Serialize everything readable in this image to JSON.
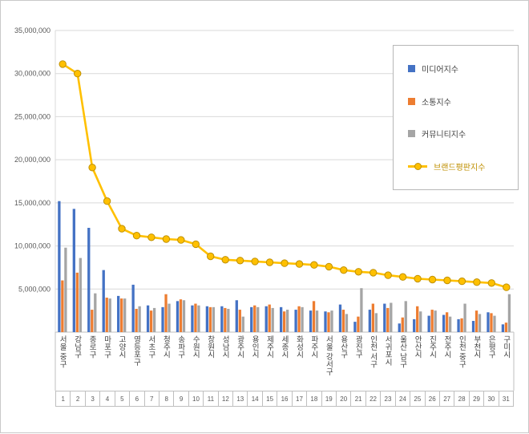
{
  "chart_data": {
    "type": "bar",
    "combo": "clustered bars + line with markers",
    "grid": true,
    "legend_position": "top-right",
    "ylim": [
      0,
      35000000
    ],
    "y_tick_step": 5000000,
    "y_tick_labels": [
      "35,000,000",
      "30,000,000",
      "25,000,000",
      "20,000,000",
      "15,000,000",
      "10,000,000",
      "5,000,000"
    ],
    "categories": [
      "서울 중구",
      "강남구",
      "종로구",
      "마포구",
      "고양시",
      "영등포구",
      "서초구",
      "청주시",
      "송파구",
      "수원시",
      "창원시",
      "성남시",
      "광주시",
      "용인시",
      "제주시",
      "세종시",
      "화성시",
      "파주시",
      "서울 강서구",
      "용산구",
      "광진구",
      "인천 서구",
      "서귀포시",
      "울산 남구",
      "안산시",
      "진주시",
      "전주시",
      "인천 중구",
      "부천시",
      "은평구",
      "구미시"
    ],
    "category_numbers": [
      1,
      2,
      3,
      4,
      5,
      6,
      7,
      8,
      9,
      10,
      11,
      12,
      13,
      14,
      15,
      16,
      17,
      18,
      19,
      20,
      21,
      22,
      23,
      24,
      25,
      26,
      27,
      28,
      29,
      30,
      31
    ],
    "series": [
      {
        "name": "미디어지수",
        "type": "bar",
        "color": "#4472C4",
        "label_color": "#404040",
        "values": [
          15200000,
          14300000,
          12100000,
          7200000,
          4200000,
          5500000,
          3100000,
          2900000,
          3600000,
          3100000,
          3000000,
          3000000,
          3700000,
          2900000,
          3000000,
          2900000,
          2600000,
          2500000,
          2400000,
          3200000,
          1200000,
          2600000,
          3300000,
          1000000,
          1500000,
          1900000,
          2000000,
          1500000,
          1300000,
          2300000,
          900000
        ]
      },
      {
        "name": "소통지수",
        "type": "bar",
        "color": "#ED7D31",
        "label_color": "#404040",
        "values": [
          6000000,
          6900000,
          2600000,
          4000000,
          3900000,
          2700000,
          2500000,
          4400000,
          3800000,
          3300000,
          2900000,
          2800000,
          2600000,
          3100000,
          3200000,
          2400000,
          3000000,
          3600000,
          2300000,
          2600000,
          1800000,
          3300000,
          2800000,
          1700000,
          3000000,
          2600000,
          2300000,
          1600000,
          2500000,
          2200000,
          1100000
        ]
      },
      {
        "name": "커뮤니티지수",
        "type": "bar",
        "color": "#A5A5A5",
        "label_color": "#404040",
        "values": [
          9800000,
          8600000,
          4500000,
          3900000,
          3900000,
          3000000,
          2800000,
          3300000,
          3700000,
          3100000,
          2900000,
          2700000,
          1800000,
          2900000,
          2800000,
          2600000,
          2900000,
          2500000,
          2500000,
          2100000,
          5100000,
          2200000,
          3400000,
          3600000,
          2400000,
          2500000,
          1800000,
          3300000,
          2100000,
          1900000,
          4400000
        ]
      },
      {
        "name": "브랜드평판지수",
        "type": "line",
        "color": "#FFC000",
        "marker_stroke": "#BF9000",
        "label_color": "#BF8F00",
        "values": [
          31100000,
          30000000,
          19100000,
          15200000,
          12000000,
          11200000,
          11000000,
          10800000,
          10700000,
          10200000,
          8800000,
          8400000,
          8300000,
          8200000,
          8100000,
          8000000,
          7900000,
          7800000,
          7600000,
          7200000,
          7000000,
          6900000,
          6600000,
          6400000,
          6200000,
          6100000,
          6000000,
          5900000,
          5800000,
          5700000,
          5200000
        ]
      }
    ]
  }
}
